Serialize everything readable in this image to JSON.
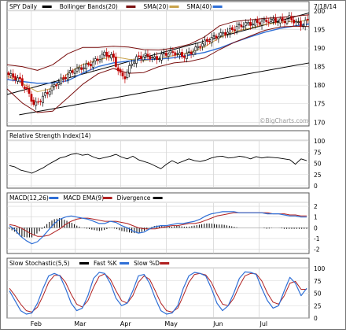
{
  "chart_data": {
    "type": "candlestick",
    "date_label": "7/18/14",
    "watermark": "©BigCharts.com",
    "x_ticks": [
      "Feb",
      "Mar",
      "Apr",
      "May",
      "Jun",
      "Jul"
    ],
    "x_tick_days": [
      16,
      45,
      75,
      105,
      136,
      166
    ],
    "x_range_days": [
      0,
      199
    ],
    "panels": {
      "price": {
        "legend": [
          {
            "label": "SPY Daily",
            "color": "#000000"
          },
          {
            "label": "Bollinger Bands(20)",
            "color": "#7a1010"
          },
          {
            "label": "SMA(20)",
            "color": "#c8a24a"
          },
          {
            "label": "SMA(40)",
            "color": "#2f6fd6"
          }
        ],
        "y_ticks": [
          200,
          195,
          190,
          185,
          180,
          175,
          170
        ],
        "ylim": [
          169,
          200
        ],
        "trendlines": [
          {
            "from": [
              0,
              177.5
            ],
            "to": [
              199,
              199.5
            ]
          },
          {
            "from": [
              8,
              172
            ],
            "to": [
              199,
              186
            ]
          }
        ],
        "series": [
          {
            "name": "SMA(20)",
            "days": [
              0,
              10,
              20,
              30,
              40,
              50,
              60,
              70,
              80,
              90,
              100,
              110,
              120,
              130,
              140,
              150,
              160,
              170,
              180,
              190,
              199
            ],
            "values": [
              182.5,
              180.5,
              178.2,
              179.2,
              183.2,
              185.6,
              186.8,
              187.7,
              187.0,
              186.6,
              187.2,
              188.0,
              188.8,
              190.3,
              192.8,
              194.5,
              195.4,
              196.4,
              197.0,
              197.2,
              197.4
            ]
          },
          {
            "name": "SMA(40)",
            "days": [
              0,
              10,
              20,
              30,
              40,
              50,
              60,
              70,
              80,
              90,
              100,
              110,
              120,
              130,
              140,
              150,
              160,
              170,
              180,
              190,
              199
            ],
            "values": [
              181.5,
              181.0,
              180.5,
              180.6,
              181.2,
              183.3,
              185.0,
              186.0,
              186.5,
              186.9,
              187.0,
              187.4,
              188.1,
              188.8,
              190.0,
              191.6,
              193.0,
              194.3,
              195.3,
              196.0,
              196.5
            ]
          },
          {
            "name": "Upper Bollinger Band",
            "days": [
              0,
              10,
              20,
              30,
              40,
              50,
              60,
              70,
              80,
              90,
              100,
              110,
              120,
              130,
              140,
              150,
              160,
              170,
              180,
              190,
              199
            ],
            "values": [
              185.5,
              185.0,
              184.0,
              185.5,
              188.5,
              190.2,
              190.2,
              190.5,
              190.3,
              189.6,
              189.5,
              190.0,
              191.0,
              193.0,
              196.0,
              197.2,
              197.6,
              198.0,
              198.3,
              198.6,
              199.0
            ]
          },
          {
            "name": "Lower Bollinger Band",
            "days": [
              0,
              10,
              20,
              30,
              40,
              50,
              60,
              70,
              80,
              90,
              100,
              110,
              120,
              130,
              140,
              150,
              160,
              170,
              180,
              190,
              199
            ],
            "values": [
              179.0,
              175.2,
              172.6,
              173.0,
              176.6,
              180.3,
              183.1,
              184.5,
              183.2,
              183.4,
              185.0,
              186.0,
              186.4,
              187.3,
              189.6,
              191.6,
              193.2,
              194.8,
              195.7,
              195.9,
              195.8
            ]
          }
        ],
        "close": {
          "days": [
            0,
            8,
            14,
            18,
            24,
            30,
            36,
            42,
            48,
            54,
            60,
            64,
            70,
            74,
            78,
            82,
            86,
            92,
            98,
            104,
            110,
            116,
            122,
            128,
            134,
            140,
            146,
            152,
            158,
            164,
            170,
            176,
            182,
            186,
            190,
            194,
            199
          ],
          "values": [
            183.0,
            181.5,
            178.0,
            174.5,
            177.0,
            179.5,
            181.5,
            183.5,
            184.5,
            185.5,
            187.0,
            188.5,
            187.5,
            183.0,
            182.2,
            186.0,
            187.5,
            188.0,
            187.0,
            188.5,
            188.8,
            187.8,
            189.0,
            191.0,
            192.5,
            193.5,
            194.5,
            195.8,
            196.5,
            196.8,
            197.3,
            197.5,
            197.2,
            198.2,
            197.0,
            196.2,
            197.7
          ]
        }
      },
      "rsi": {
        "title": "Relative Strength Index(14)",
        "y_ticks": [
          100,
          75,
          50,
          25,
          0
        ],
        "ylim": [
          0,
          100
        ],
        "values": [
          45,
          42,
          35,
          32,
          28,
          34,
          40,
          48,
          55,
          62,
          65,
          70,
          72,
          68,
          70,
          64,
          60,
          63,
          66,
          70,
          64,
          60,
          66,
          58,
          54,
          50,
          44,
          38,
          48,
          56,
          50,
          55,
          60,
          56,
          54,
          57,
          62,
          65,
          66,
          62,
          63,
          66,
          64,
          60,
          65,
          62,
          64,
          63,
          62,
          60,
          58,
          48,
          60,
          56
        ]
      },
      "macd": {
        "legend": [
          {
            "label": "MACD(12,26)",
            "color": "#2f6fd6"
          },
          {
            "label": "MACD EMA(9)",
            "color": "#b02020"
          },
          {
            "label": "Divergence",
            "color": "#000000"
          }
        ],
        "y_ticks": [
          2,
          1,
          0,
          -1,
          -2
        ],
        "ylim": [
          -2.4,
          2.3
        ],
        "macd": [
          0.2,
          -0.2,
          -0.8,
          -1.2,
          -1.5,
          -1.3,
          -0.8,
          -0.2,
          0.4,
          0.8,
          1.0,
          1.1,
          1.0,
          0.9,
          0.8,
          0.6,
          0.4,
          0.4,
          0.6,
          0.5,
          0.2,
          0.0,
          -0.3,
          -0.5,
          -0.4,
          -0.1,
          0.1,
          0.2,
          0.2,
          0.3,
          0.4,
          0.4,
          0.5,
          0.6,
          0.8,
          1.1,
          1.3,
          1.4,
          1.5,
          1.5,
          1.5,
          1.4,
          1.4,
          1.4,
          1.4,
          1.4,
          1.3,
          1.3,
          1.3,
          1.2,
          1.1,
          1.1,
          1.0,
          1.0
        ],
        "signal": [
          0.3,
          0.2,
          0.0,
          -0.3,
          -0.6,
          -0.8,
          -0.8,
          -0.7,
          -0.4,
          -0.1,
          0.3,
          0.6,
          0.8,
          0.9,
          0.9,
          0.8,
          0.7,
          0.6,
          0.6,
          0.6,
          0.5,
          0.4,
          0.2,
          0.0,
          -0.1,
          -0.1,
          -0.1,
          0.0,
          0.1,
          0.2,
          0.2,
          0.3,
          0.4,
          0.4,
          0.5,
          0.7,
          0.9,
          1.1,
          1.2,
          1.3,
          1.4,
          1.4,
          1.4,
          1.4,
          1.4,
          1.4,
          1.4,
          1.3,
          1.3,
          1.3,
          1.2,
          1.2,
          1.1,
          1.1
        ]
      },
      "stochastic": {
        "legend": [
          {
            "label": "Slow Stochastic(5,5)",
            "color": "#000000"
          },
          {
            "label": "Fast %K",
            "color": "#2f6fd6"
          },
          {
            "label": "Slow %D",
            "color": "#b02020"
          }
        ],
        "y_ticks": [
          100,
          75,
          50,
          25,
          0
        ],
        "ylim": [
          0,
          100
        ],
        "fast_k": [
          55,
          35,
          15,
          8,
          10,
          30,
          60,
          85,
          90,
          85,
          60,
          30,
          15,
          20,
          45,
          80,
          92,
          90,
          70,
          40,
          25,
          30,
          55,
          85,
          88,
          70,
          40,
          15,
          8,
          10,
          25,
          60,
          85,
          92,
          90,
          85,
          60,
          30,
          15,
          25,
          50,
          80,
          93,
          92,
          88,
          60,
          35,
          20,
          25,
          55,
          82,
          70,
          45,
          60
        ],
        "slow_d": [
          60,
          45,
          28,
          15,
          12,
          22,
          45,
          72,
          86,
          86,
          72,
          48,
          28,
          22,
          35,
          62,
          84,
          89,
          78,
          55,
          35,
          30,
          45,
          72,
          85,
          78,
          55,
          30,
          15,
          12,
          20,
          45,
          72,
          88,
          90,
          87,
          72,
          48,
          28,
          25,
          40,
          65,
          85,
          90,
          89,
          75,
          50,
          32,
          28,
          45,
          70,
          74,
          58,
          58
        ]
      }
    }
  }
}
